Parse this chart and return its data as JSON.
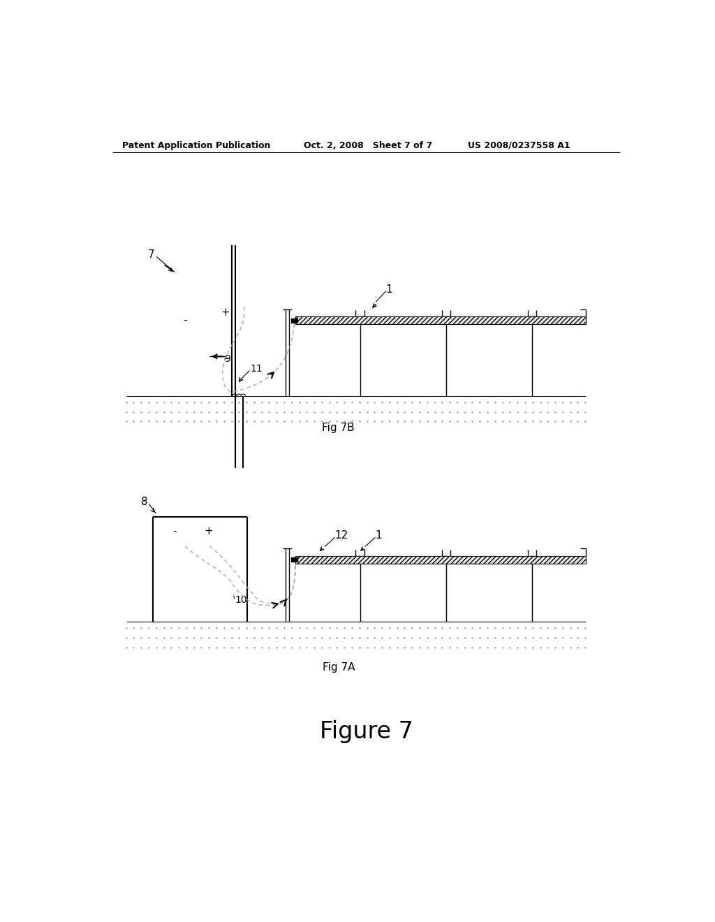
{
  "bg_color": "#ffffff",
  "line_color": "#000000",
  "header_text": "Patent Application Publication",
  "header_date": "Oct. 2, 2008   Sheet 7 of 7",
  "header_patent": "US 2008/0237558 A1",
  "fig7b_caption": "Fig 7B",
  "fig7a_caption": "Fig 7A",
  "figure_caption": "Figure 7",
  "label_7": "7",
  "label_1_7b": "1",
  "label_9": "9",
  "label_11": "11",
  "label_8": "8",
  "label_12": "12",
  "label_1_7a": "1",
  "label_10": "10",
  "minus": "-",
  "plus": "+"
}
